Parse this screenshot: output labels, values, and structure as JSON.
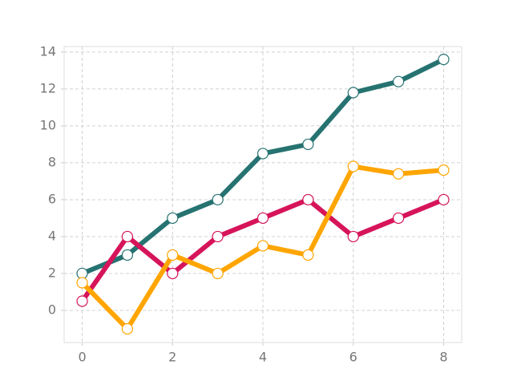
{
  "chart_data": {
    "type": "line",
    "x": [
      0,
      1,
      2,
      3,
      4,
      5,
      6,
      7,
      8
    ],
    "series": [
      {
        "color": "#267371",
        "values": [
          2,
          3,
          5,
          6,
          8.5,
          9,
          11.8,
          12.4,
          13.6
        ]
      },
      {
        "color": "#d6145a",
        "values": [
          0.5,
          4,
          2,
          4,
          5,
          6,
          4,
          5,
          6
        ]
      },
      {
        "color": "#ffa500",
        "values": [
          1.5,
          -1,
          3,
          2,
          3.5,
          3,
          7.8,
          7.4,
          7.6
        ]
      }
    ],
    "xlim": [
      -0.4,
      8.4
    ],
    "xticks": [
      0,
      2,
      4,
      6,
      8
    ],
    "ylim": [
      -1.74,
      14.3
    ],
    "yticks": [
      0,
      2,
      4,
      6,
      8,
      10,
      12,
      14
    ],
    "grid": true
  }
}
